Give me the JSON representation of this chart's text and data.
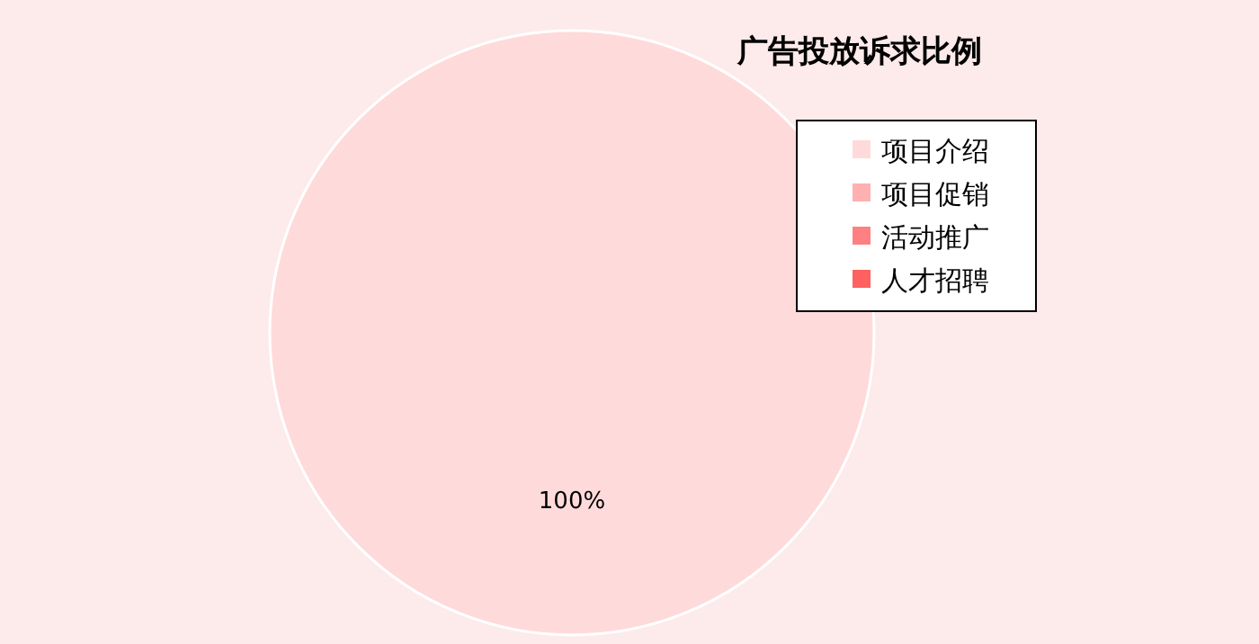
{
  "chart_data": {
    "type": "pie",
    "title": "广告投放诉求比例",
    "categories": [
      "项目介绍",
      "项目促销",
      "活动推广",
      "人才招聘"
    ],
    "values": [
      100,
      0,
      0,
      0
    ],
    "colors": [
      "#ffdada",
      "#ffb0b0",
      "#ff8080",
      "#ff6060"
    ],
    "value_labels": [
      "100%",
      null,
      null,
      null
    ],
    "legend": "top right"
  }
}
